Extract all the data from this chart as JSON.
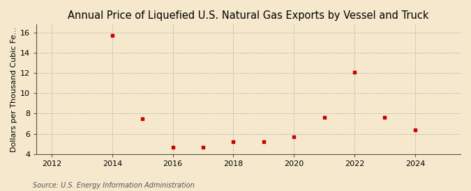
{
  "title": "Annual Price of Liquefied U.S. Natural Gas Exports by Vessel and Truck",
  "ylabel": "Dollars per Thousand Cubic Fe...",
  "source": "Source: U.S. Energy Information Administration",
  "background_color": "#f5e8cc",
  "plot_bg_color": "#f5e8cc",
  "marker_color": "#cc0000",
  "years": [
    2014,
    2015,
    2016,
    2017,
    2018,
    2019,
    2020,
    2021,
    2022,
    2023,
    2024
  ],
  "values": [
    15.7,
    7.5,
    4.7,
    4.7,
    5.2,
    5.2,
    5.7,
    7.6,
    12.1,
    7.6,
    6.4
  ],
  "xlim": [
    2011.5,
    2025.5
  ],
  "ylim": [
    4,
    16.8
  ],
  "yticks": [
    4,
    6,
    8,
    10,
    12,
    14,
    16
  ],
  "xticks": [
    2012,
    2014,
    2016,
    2018,
    2020,
    2022,
    2024
  ],
  "grid_color": "#bbbbbb",
  "title_fontsize": 10.5,
  "label_fontsize": 8,
  "tick_fontsize": 8,
  "source_fontsize": 7
}
